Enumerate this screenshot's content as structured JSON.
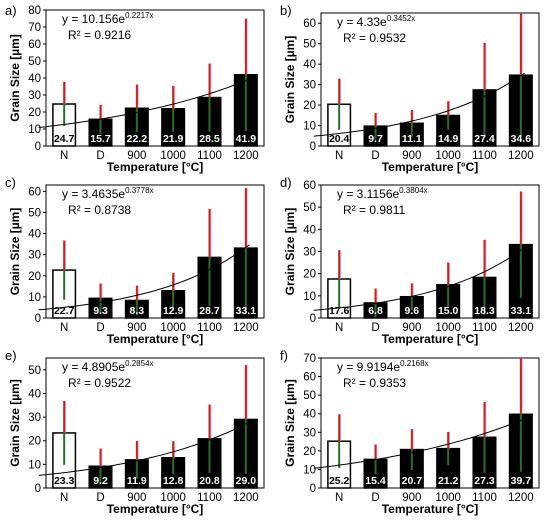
{
  "chart_data": [
    {
      "type": "bar",
      "panel_label": "a)",
      "categories": [
        "N",
        "D",
        "900",
        "1000",
        "1100",
        "1200"
      ],
      "values": [
        24.7,
        15.7,
        22.2,
        21.9,
        28.5,
        41.9
      ],
      "error": [
        13,
        8.5,
        14,
        13.5,
        20,
        33
      ],
      "value_labels": [
        "24.7",
        "15.7",
        "22.2",
        "21.9",
        "28.5",
        "41.9"
      ],
      "ylim": [
        0,
        80
      ],
      "yticks": [
        0,
        10,
        20,
        30,
        40,
        50,
        60,
        70,
        80
      ],
      "ytick_labels": [
        "0",
        "10",
        "20",
        "30",
        "40",
        "50",
        "60",
        "70",
        "80"
      ],
      "xlabel": "Temperature [°C]",
      "ylabel": "Grain Size [µm]",
      "fit": {
        "a": 10.156,
        "b": 0.2217,
        "equation_main": "y = 10.156e",
        "equation_exp": "0.2217x",
        "r2": "R² = 0.9216"
      },
      "grid": false
    },
    {
      "type": "bar",
      "panel_label": "b)",
      "categories": [
        "N",
        "D",
        "900",
        "1000",
        "1100",
        "1200"
      ],
      "values": [
        20.4,
        9.7,
        11.1,
        14.9,
        27.4,
        34.6
      ],
      "error": [
        12.5,
        6.5,
        6.5,
        7,
        23,
        30
      ],
      "value_labels": [
        "20.4",
        "9.7",
        "11.1",
        "14.9",
        "27.4",
        "34.6"
      ],
      "ylim": [
        0,
        65
      ],
      "yticks": [
        0,
        10,
        20,
        30,
        40,
        50,
        60
      ],
      "ytick_labels": [
        "0",
        "10",
        "20",
        "30",
        "40",
        "50",
        "60"
      ],
      "xlabel": "Temperature [°C]",
      "ylabel": "Grain Size [µm]",
      "fit": {
        "a": 4.33,
        "b": 0.3452,
        "equation_main": "y = 4.33e",
        "equation_exp": "0.3452x",
        "r2": "R² = 0.9532"
      },
      "grid": false
    },
    {
      "type": "bar",
      "panel_label": "c)",
      "categories": [
        "N",
        "D",
        "900",
        "1000",
        "1100",
        "1200"
      ],
      "values": [
        22.7,
        9.3,
        8.3,
        12.9,
        28.7,
        33.1
      ],
      "error": [
        14,
        7,
        7,
        8.5,
        23,
        28.5
      ],
      "value_labels": [
        "22.7",
        "9.3",
        "8.3",
        "12.9",
        "28.7",
        "33.1"
      ],
      "ylim": [
        0,
        63
      ],
      "yticks": [
        0,
        10,
        20,
        30,
        40,
        50,
        60
      ],
      "ytick_labels": [
        "0",
        "10",
        "20",
        "30",
        "40",
        "50",
        "60"
      ],
      "xlabel": "Temperature [°C]",
      "ylabel": "Grain Size [µm]",
      "fit": {
        "a": 3.4635,
        "b": 0.3778,
        "equation_main": "y = 3.4635e",
        "equation_exp": "0.3778x",
        "r2": "R² = 0.8738"
      },
      "grid": false
    },
    {
      "type": "bar",
      "panel_label": "d)",
      "categories": [
        "N",
        "D",
        "900",
        "1000",
        "1100",
        "1200"
      ],
      "values": [
        17.6,
        6.8,
        9.6,
        15.0,
        18.3,
        33.1
      ],
      "error": [
        13,
        6.5,
        6,
        10,
        17,
        24
      ],
      "value_labels": [
        "17.6",
        "6.8",
        "9.6",
        "15.0",
        "18.3",
        "33.1"
      ],
      "ylim": [
        0,
        60
      ],
      "yticks": [
        0,
        10,
        20,
        30,
        40,
        50,
        60
      ],
      "ytick_labels": [
        "0",
        "10",
        "20",
        "30",
        "40",
        "50",
        "60"
      ],
      "xlabel": "Temperature [°C]",
      "ylabel": "Grain Size [µm]",
      "fit": {
        "a": 3.1156,
        "b": 0.3804,
        "equation_main": "y = 3.1156e",
        "equation_exp": "0.3804x",
        "r2": "R² = 0.9811"
      },
      "grid": false
    },
    {
      "type": "bar",
      "panel_label": "e)",
      "categories": [
        "N",
        "D",
        "900",
        "1000",
        "1100",
        "1200"
      ],
      "values": [
        23.3,
        9.2,
        11.9,
        12.8,
        20.8,
        29.0
      ],
      "error": [
        13.5,
        7.5,
        8,
        7,
        14.5,
        23
      ],
      "value_labels": [
        "23.3",
        "9.2",
        "11.9",
        "12.8",
        "20.8",
        "29.0"
      ],
      "ylim": [
        0,
        55
      ],
      "yticks": [
        0,
        10,
        20,
        30,
        40,
        50
      ],
      "ytick_labels": [
        "0",
        "10",
        "20",
        "30",
        "40",
        "50"
      ],
      "xlabel": "Temperature [°C]",
      "ylabel": "Grain Size [µm]",
      "fit": {
        "a": 4.8905,
        "b": 0.2854,
        "equation_main": "y = 4.8905e",
        "equation_exp": "0.2854x",
        "r2": "R² = 0.9522"
      },
      "grid": false
    },
    {
      "type": "bar",
      "panel_label": "f)",
      "categories": [
        "N",
        "D",
        "900",
        "1000",
        "1100",
        "1200"
      ],
      "values": [
        25.2,
        15.4,
        20.7,
        21.2,
        27.3,
        39.7
      ],
      "error": [
        14.5,
        8,
        11,
        9,
        19,
        31
      ],
      "value_labels": [
        "25.2",
        "15.4",
        "20.7",
        "21.2",
        "27.3",
        "39.7"
      ],
      "ylim": [
        0,
        70
      ],
      "yticks": [
        0,
        10,
        20,
        30,
        40,
        50,
        60,
        70
      ],
      "ytick_labels": [
        "0",
        "10",
        "20",
        "30",
        "40",
        "50",
        "60",
        "70"
      ],
      "xlabel": "Temperature [°C]",
      "ylabel": "Grain Size [µm]",
      "fit": {
        "a": 9.9194,
        "b": 0.2168,
        "equation_main": "y = 9.9194e",
        "equation_exp": "0.2168x",
        "r2": "R² = 0.9353"
      },
      "grid": false
    }
  ],
  "colors": {
    "bar_first": "#ffffff",
    "bar_fill": "#000000",
    "bar_edge": "#000000",
    "error_lower": "#2e6b2e",
    "error_upper": "#b82a1a",
    "error_accent": "#ff6fd0",
    "fit_line": "#000000",
    "value_label": "#ffffff",
    "value_label_first": "#000000"
  }
}
